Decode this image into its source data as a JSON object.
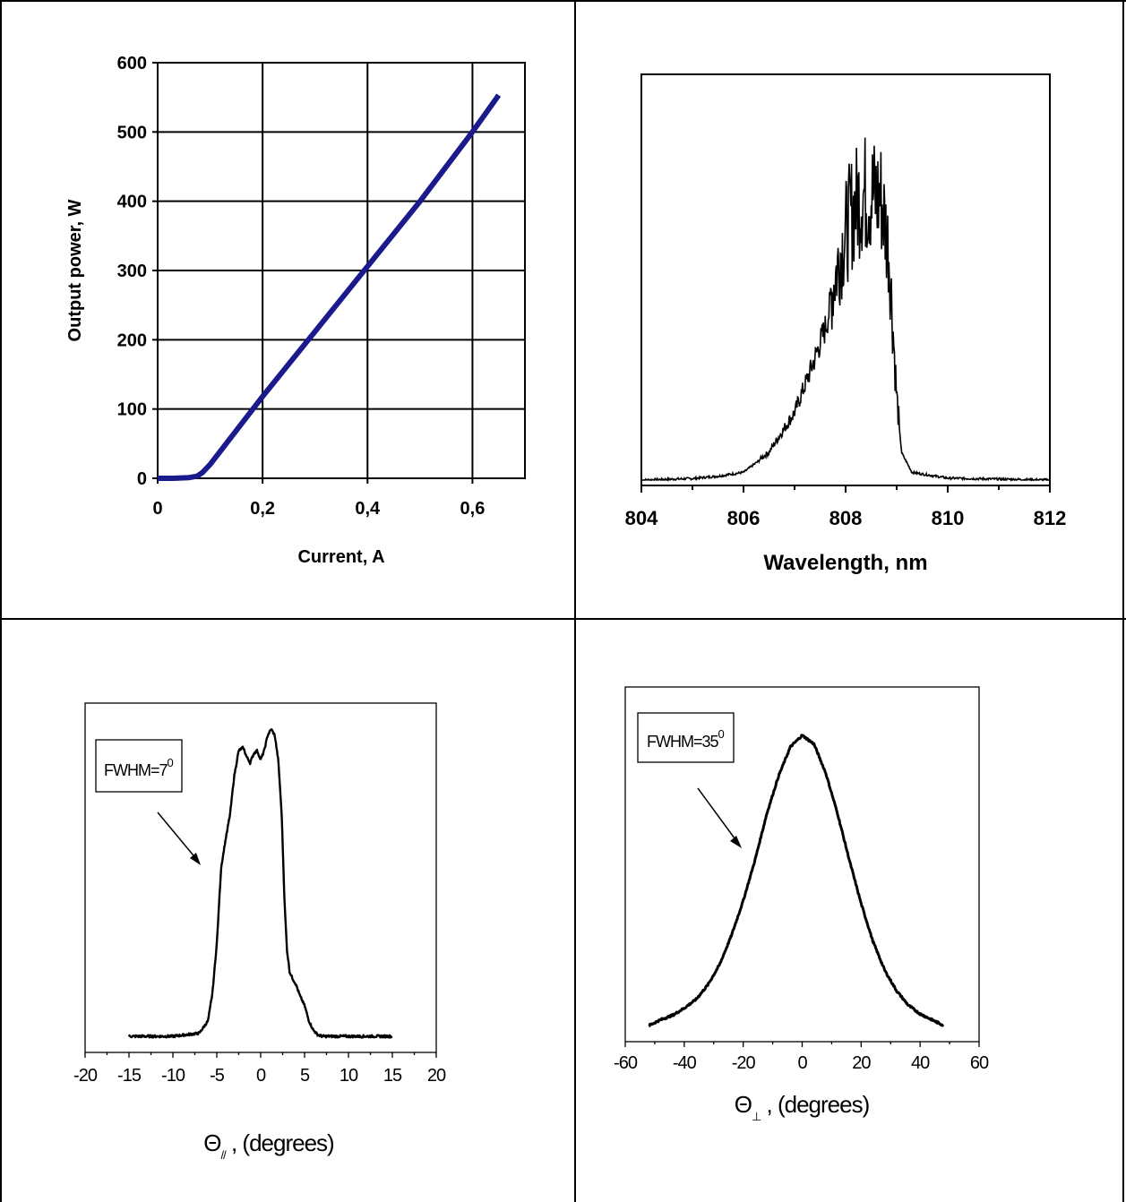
{
  "chart_data": [
    {
      "type": "line",
      "xlabel": "Current, A",
      "ylabel": "Output power, W",
      "xlim": [
        0,
        0.7
      ],
      "ylim": [
        0,
        600
      ],
      "x_ticks": [
        "0",
        "0,2",
        "0,4",
        "0,6"
      ],
      "y_ticks": [
        "0",
        "100",
        "200",
        "300",
        "400",
        "500",
        "600"
      ],
      "grid": true,
      "series_color": "#1a1a8c",
      "x": [
        0,
        0.03,
        0.06,
        0.075,
        0.085,
        0.1,
        0.2,
        0.3,
        0.4,
        0.5,
        0.6,
        0.65
      ],
      "y": [
        0,
        0,
        1,
        3,
        8,
        20,
        118,
        212,
        306,
        400,
        500,
        553
      ]
    },
    {
      "type": "line",
      "xlabel": "Wavelength, nm",
      "ylabel": "",
      "xlim": [
        804,
        812
      ],
      "ylim": [
        0,
        1.05
      ],
      "x_ticks": [
        "804",
        "806",
        "808",
        "810",
        "812"
      ],
      "grid": false,
      "x": [
        804,
        805,
        805.5,
        806,
        806.5,
        807,
        807.3,
        807.6,
        807.9,
        808.1,
        808.3,
        808.5,
        808.7,
        808.85,
        809.0,
        809.1,
        809.3,
        810,
        812
      ],
      "y": [
        0.0,
        0.004,
        0.01,
        0.02,
        0.07,
        0.17,
        0.27,
        0.38,
        0.55,
        0.64,
        0.69,
        0.69,
        0.68,
        0.55,
        0.2,
        0.07,
        0.02,
        0.005,
        0.0
      ]
    },
    {
      "type": "line",
      "xlabel": "Θ// , (degrees)",
      "xlabel_main": "Θ",
      "xlabel_sub": "//",
      "xlabel_rest": ", (degrees)",
      "ylabel": "",
      "xlim": [
        -20,
        20
      ],
      "ylim": [
        0,
        1.05
      ],
      "x_ticks": [
        "-20",
        "-15",
        "-10",
        "-5",
        "0",
        "5",
        "10",
        "15",
        "20"
      ],
      "annotation": "FWHM=7",
      "annotation_sup": "0",
      "x": [
        -15,
        -10,
        -7,
        -6,
        -5.5,
        -5,
        -4.5,
        -4,
        -3.5,
        -3,
        -2.5,
        -2,
        -1.6,
        -1.2,
        -0.8,
        -0.4,
        0,
        0.4,
        0.8,
        1.2,
        1.6,
        2,
        2.4,
        2.7,
        3,
        3.3,
        3.6,
        4,
        4.5,
        5,
        5.5,
        6,
        6.5,
        7,
        8,
        10,
        15
      ],
      "y": [
        0,
        0,
        0.01,
        0.05,
        0.14,
        0.3,
        0.55,
        0.64,
        0.72,
        0.85,
        0.93,
        0.94,
        0.91,
        0.89,
        0.92,
        0.93,
        0.9,
        0.93,
        0.98,
        1.0,
        0.98,
        0.9,
        0.72,
        0.45,
        0.28,
        0.21,
        0.19,
        0.17,
        0.13,
        0.1,
        0.05,
        0.02,
        0.005,
        0,
        0,
        0,
        0
      ]
    },
    {
      "type": "line",
      "xlabel": "Θ⊥ , (degrees)",
      "xlabel_main": "Θ",
      "xlabel_sub": "⊥",
      "xlabel_rest": ", (degrees)",
      "ylabel": "",
      "xlim": [
        -60,
        60
      ],
      "ylim": [
        0,
        1.05
      ],
      "x_ticks": [
        "-60",
        "-40",
        "-20",
        "0",
        "20",
        "40",
        "60"
      ],
      "annotation": "FWHM=35",
      "annotation_sup": "0",
      "x": [
        -52,
        -48,
        -44,
        -40,
        -36,
        -32,
        -28,
        -24,
        -20,
        -16,
        -12,
        -8,
        -4,
        0,
        4,
        8,
        12,
        16,
        20,
        24,
        28,
        32,
        36,
        40,
        44,
        48
      ],
      "y": [
        0.0,
        0.02,
        0.035,
        0.06,
        0.09,
        0.14,
        0.21,
        0.31,
        0.43,
        0.57,
        0.73,
        0.86,
        0.96,
        1.0,
        0.97,
        0.87,
        0.73,
        0.57,
        0.42,
        0.29,
        0.19,
        0.12,
        0.07,
        0.04,
        0.02,
        0.0
      ]
    }
  ]
}
